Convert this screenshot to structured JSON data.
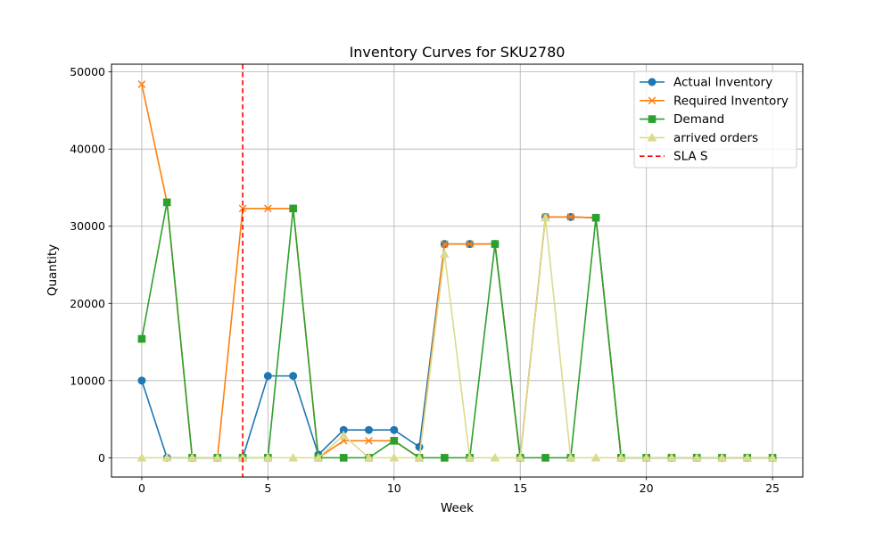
{
  "chart_data": {
    "type": "line",
    "title": "Inventory Curves for SKU2780",
    "xlabel": "Week",
    "ylabel": "Quantity",
    "xlim": [
      -1.2,
      26.2
    ],
    "ylim": [
      -2500,
      51000
    ],
    "xticks": [
      0,
      5,
      10,
      15,
      20,
      25
    ],
    "yticks": [
      0,
      10000,
      20000,
      30000,
      40000,
      50000
    ],
    "xtick_labels": [
      "0",
      "5",
      "10",
      "15",
      "20",
      "25"
    ],
    "ytick_labels": [
      "0",
      "10000",
      "20000",
      "30000",
      "40000",
      "50000"
    ],
    "grid": true,
    "legend_position": "top-right",
    "x": [
      0,
      1,
      2,
      3,
      4,
      5,
      6,
      7,
      8,
      9,
      10,
      11,
      12,
      13,
      14,
      15,
      16,
      17,
      18,
      19,
      20,
      21,
      22,
      23,
      24,
      25
    ],
    "series": [
      {
        "name": "Actual Inventory",
        "color": "#1f77b4",
        "marker": "circle",
        "values": [
          10000,
          0,
          0,
          0,
          0,
          10600,
          10600,
          400,
          3600,
          3600,
          3600,
          1400,
          27700,
          27700,
          27700,
          0,
          31200,
          31200,
          31100,
          0,
          0,
          0,
          0,
          0,
          0,
          0
        ]
      },
      {
        "name": "Required Inventory",
        "color": "#ff7f0e",
        "marker": "x",
        "values": [
          48400,
          33100,
          0,
          0,
          32300,
          32300,
          32300,
          0,
          2200,
          2200,
          2200,
          0,
          27700,
          27700,
          27700,
          0,
          31200,
          31200,
          31100,
          0,
          0,
          0,
          0,
          0,
          0,
          0
        ]
      },
      {
        "name": "Demand",
        "color": "#2ca02c",
        "marker": "square",
        "values": [
          15400,
          33100,
          0,
          0,
          0,
          0,
          32300,
          0,
          0,
          0,
          2200,
          0,
          0,
          0,
          27700,
          0,
          0,
          0,
          31100,
          0,
          0,
          0,
          0,
          0,
          0,
          0
        ]
      },
      {
        "name": "arrived orders",
        "color": "#dbdb8d",
        "marker": "triangle",
        "values": [
          0,
          0,
          0,
          0,
          0,
          0,
          0,
          0,
          2900,
          0,
          0,
          0,
          26400,
          0,
          0,
          0,
          31100,
          0,
          0,
          0,
          0,
          0,
          0,
          0,
          0,
          0
        ]
      }
    ],
    "vlines": [
      {
        "name": "SLA S",
        "x": 4,
        "color": "#ff0000",
        "style": "dashed"
      }
    ]
  }
}
